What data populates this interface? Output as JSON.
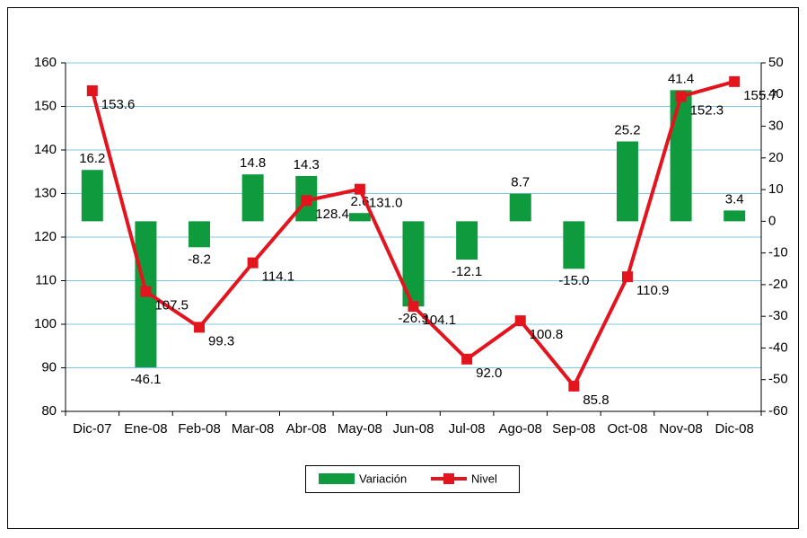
{
  "chart_data": {
    "type": "bar-line",
    "categories": [
      "Dic-07",
      "Ene-08",
      "Feb-08",
      "Mar-08",
      "Abr-08",
      "May-08",
      "Jun-08",
      "Jul-08",
      "Ago-08",
      "Sep-08",
      "Oct-08",
      "Nov-08",
      "Dic-08"
    ],
    "series": [
      {
        "name": "Variación",
        "type": "bar",
        "axis": "y2",
        "color": "#109a3e",
        "values": [
          16.2,
          -46.1,
          -8.2,
          14.8,
          14.3,
          2.6,
          -26.9,
          -12.1,
          8.7,
          -15.0,
          25.2,
          41.4,
          3.4
        ],
        "value_labels": [
          "16.2",
          "-46.1",
          "-8.2",
          "14.8",
          "14.3",
          "2.6",
          "-26.9",
          "-12.1",
          "8.7",
          "-15.0",
          "25.2",
          "41.4",
          "3.4"
        ]
      },
      {
        "name": "Nivel",
        "type": "line",
        "axis": "y",
        "color": "#e3141e",
        "values": [
          153.6,
          107.5,
          99.3,
          114.1,
          128.4,
          131.0,
          104.1,
          92.0,
          100.8,
          85.8,
          110.9,
          152.3,
          155.7
        ],
        "value_labels": [
          "153.6",
          "107.5",
          "99.3",
          "114.1",
          "128.4",
          "131.0",
          "104.1",
          "92.0",
          "100.8",
          "85.8",
          "110.9",
          "152.3",
          "155.7"
        ]
      }
    ],
    "ylim": [
      80,
      160
    ],
    "yticks": [
      80,
      90,
      100,
      110,
      120,
      130,
      140,
      150,
      160
    ],
    "y2lim": [
      -60,
      50
    ],
    "y2ticks": [
      -60,
      -50,
      -40,
      -30,
      -20,
      -10,
      0,
      10,
      20,
      30,
      40,
      50
    ],
    "grid": true,
    "legend": "bottom"
  }
}
